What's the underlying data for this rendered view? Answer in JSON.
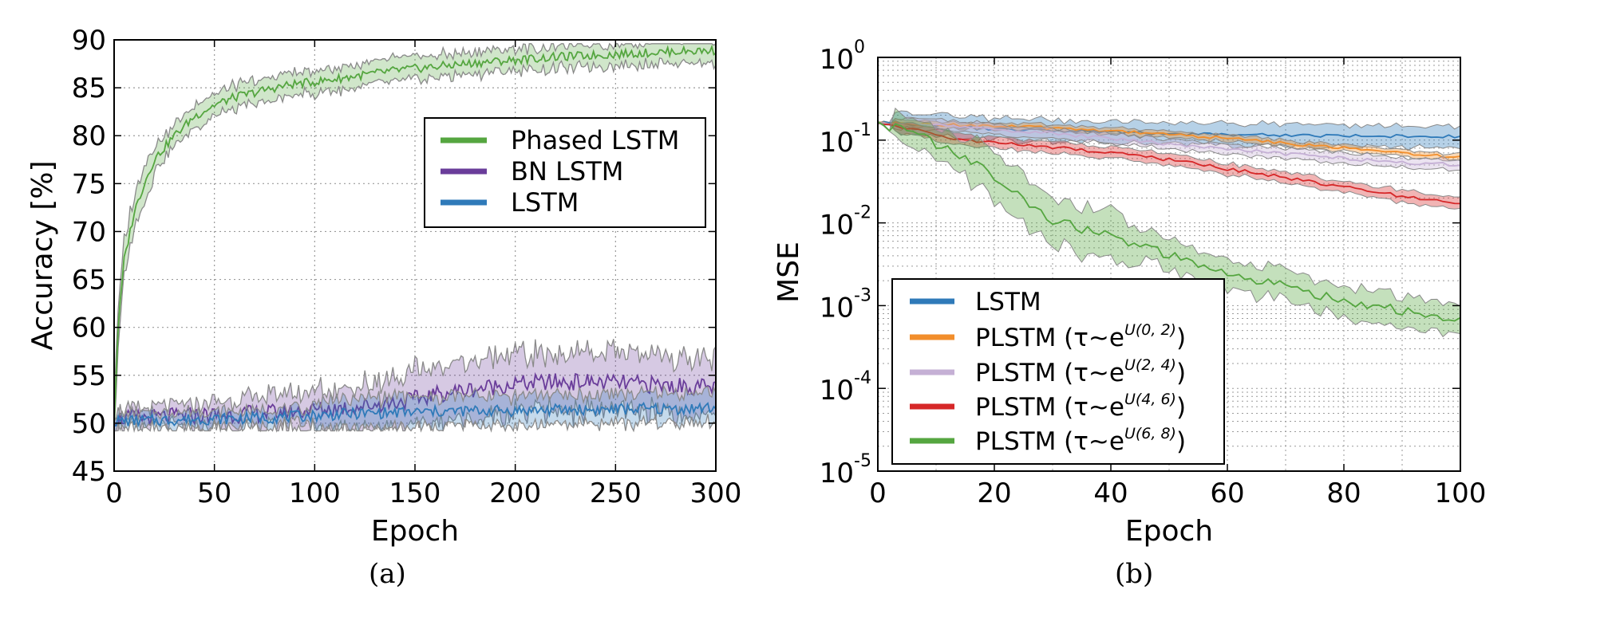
{
  "panels": [
    {
      "caption": "(a)"
    },
    {
      "caption": "(b)"
    }
  ],
  "chart_data": [
    {
      "type": "line",
      "xlabel": "Epoch",
      "ylabel": "Accuracy [%]",
      "xlim": [
        0,
        300
      ],
      "ylim": [
        45,
        90
      ],
      "xticks": [
        0,
        50,
        100,
        150,
        200,
        250,
        300
      ],
      "yticks": [
        45,
        50,
        55,
        60,
        65,
        70,
        75,
        80,
        85,
        90
      ],
      "grid": true,
      "legend_position": "upper-right",
      "band_color": "#8a8a8a",
      "series": [
        {
          "name": "Phased LSTM",
          "color": "#55a640",
          "x": [
            0,
            2,
            5,
            10,
            15,
            20,
            30,
            40,
            50,
            60,
            70,
            80,
            90,
            100,
            120,
            140,
            160,
            180,
            200,
            220,
            240,
            260,
            280,
            300
          ],
          "y": [
            50,
            60,
            67,
            72,
            75,
            77.5,
            80,
            82,
            83.2,
            84,
            84.5,
            85,
            85.4,
            85.6,
            86.2,
            86.8,
            87.2,
            87.6,
            87.9,
            88.2,
            88.4,
            88.6,
            88.8,
            88.9
          ],
          "spread": 1.5
        },
        {
          "name": "BN LSTM",
          "color": "#6a3d9a",
          "x": [
            0,
            20,
            40,
            60,
            80,
            100,
            120,
            140,
            150,
            160,
            180,
            200,
            220,
            240,
            260,
            280,
            300
          ],
          "y": [
            50.5,
            50.6,
            50.8,
            50.9,
            51.1,
            51.4,
            51.7,
            52.2,
            52.5,
            53,
            53.6,
            54.1,
            54.3,
            54.3,
            54.1,
            53.9,
            53.7
          ],
          "spread": 3.5
        },
        {
          "name": "LSTM",
          "color": "#2f7ab9",
          "x": [
            0,
            20,
            40,
            60,
            80,
            100,
            120,
            140,
            160,
            180,
            200,
            220,
            240,
            260,
            280,
            300
          ],
          "y": [
            50.2,
            50.3,
            50.4,
            50.5,
            50.6,
            50.8,
            51,
            51.1,
            51.2,
            51.3,
            51.3,
            51.4,
            51.4,
            51.5,
            51.5,
            51.6
          ],
          "spread": 2.0
        }
      ]
    },
    {
      "type": "line",
      "xlabel": "Epoch",
      "ylabel": "MSE",
      "log_y": true,
      "xlim": [
        0,
        100
      ],
      "ylim": [
        1e-05,
        1
      ],
      "xticks": [
        0,
        20,
        40,
        60,
        80,
        100
      ],
      "yticks": [
        {
          "base": "10",
          "exp": "0"
        },
        {
          "base": "10",
          "exp": "-1"
        },
        {
          "base": "10",
          "exp": "-2"
        },
        {
          "base": "10",
          "exp": "-3"
        },
        {
          "base": "10",
          "exp": "-4"
        },
        {
          "base": "10",
          "exp": "-5"
        }
      ],
      "grid": true,
      "legend_position": "lower-left",
      "series": [
        {
          "name": "LSTM",
          "label_text": "LSTM",
          "color": "#2f7ab9",
          "x": [
            0,
            5,
            10,
            15,
            20,
            30,
            40,
            50,
            60,
            70,
            80,
            90,
            100
          ],
          "y": [
            0.16,
            0.158,
            0.15,
            0.142,
            0.135,
            0.13,
            0.125,
            0.12,
            0.117,
            0.115,
            0.113,
            0.112,
            0.11
          ],
          "band": 1.45
        },
        {
          "name": "PLSTM (τ∼e^U(0, 2))",
          "label_text": "PLSTM (τ∼e",
          "label_sup": "U(0, 2)",
          "label_close": ")",
          "color": "#f28e2b",
          "x": [
            0,
            5,
            10,
            15,
            20,
            30,
            40,
            50,
            60,
            70,
            80,
            90,
            100
          ],
          "y": [
            0.16,
            0.158,
            0.155,
            0.152,
            0.148,
            0.14,
            0.13,
            0.118,
            0.105,
            0.092,
            0.08,
            0.07,
            0.062
          ],
          "band": 1.12
        },
        {
          "name": "PLSTM (τ∼e^U(2, 4))",
          "label_text": "PLSTM (τ∼e",
          "label_sup": "U(2, 4)",
          "label_close": ")",
          "color": "#c5b0d5",
          "x": [
            0,
            5,
            10,
            15,
            20,
            30,
            40,
            50,
            60,
            70,
            80,
            90,
            100
          ],
          "y": [
            0.16,
            0.157,
            0.152,
            0.145,
            0.135,
            0.12,
            0.105,
            0.09,
            0.078,
            0.068,
            0.06,
            0.054,
            0.05
          ],
          "band": 1.2
        },
        {
          "name": "PLSTM (τ∼e^U(4, 6))",
          "label_text": "PLSTM (τ∼e",
          "label_sup": "U(4, 6)",
          "label_close": ")",
          "color": "#d62728",
          "x": [
            0,
            5,
            10,
            15,
            20,
            30,
            40,
            50,
            60,
            70,
            80,
            90,
            100
          ],
          "y": [
            0.16,
            0.14,
            0.115,
            0.1,
            0.092,
            0.082,
            0.07,
            0.058,
            0.045,
            0.035,
            0.027,
            0.021,
            0.017
          ],
          "band": 1.22
        },
        {
          "name": "PLSTM (τ∼e^U(6, 8))",
          "label_text": "PLSTM (τ∼e",
          "label_sup": "U(6, 8)",
          "label_close": ")",
          "color": "#55a640",
          "x": [
            0,
            5,
            10,
            15,
            20,
            25,
            30,
            35,
            40,
            45,
            50,
            55,
            60,
            65,
            70,
            75,
            80,
            85,
            90,
            95,
            100
          ],
          "y": [
            0.16,
            0.13,
            0.09,
            0.06,
            0.035,
            0.018,
            0.011,
            0.0085,
            0.0068,
            0.0052,
            0.004,
            0.003,
            0.0024,
            0.002,
            0.0017,
            0.0014,
            0.00115,
            0.001,
            0.00085,
            0.00075,
            0.00065
          ],
          "band": 1.7
        }
      ]
    }
  ]
}
